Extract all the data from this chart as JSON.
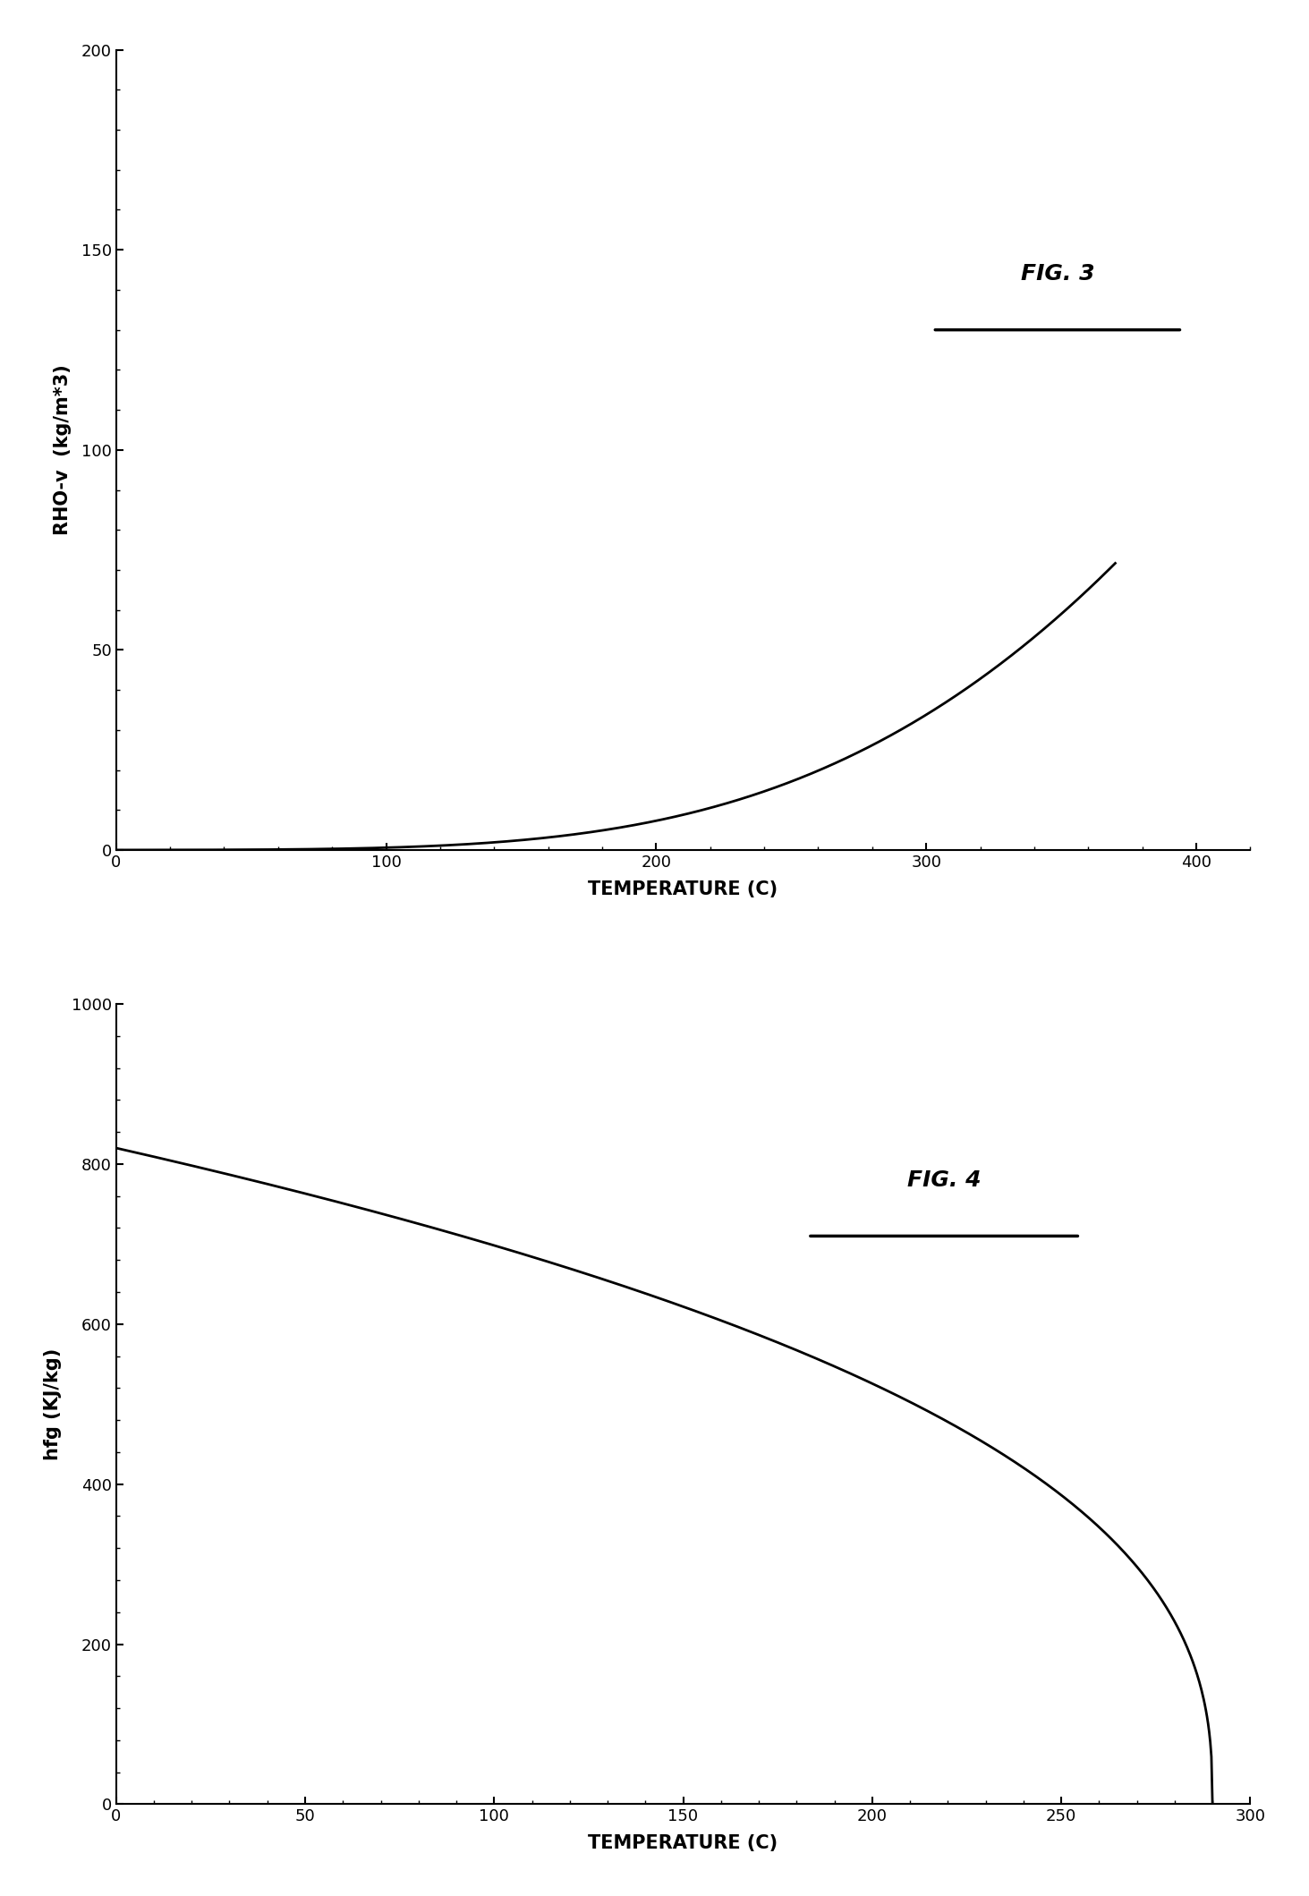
{
  "fig3": {
    "title": "FIG. 3",
    "xlabel": "TEMPERATURE (C)",
    "ylabel": "RHO-v  (kg/m*3)",
    "xlim": [
      0,
      420
    ],
    "ylim": [
      0,
      200
    ],
    "xticks": [
      0,
      100,
      200,
      300,
      400
    ],
    "yticks": [
      0,
      50,
      100,
      150,
      200
    ]
  },
  "fig4": {
    "title": "FIG. 4",
    "xlabel": "TEMPERATURE (C)",
    "ylabel": "hfg (KJ/kg)",
    "xlim": [
      0,
      300
    ],
    "ylim": [
      0,
      1000
    ],
    "xticks": [
      0,
      50,
      100,
      150,
      200,
      250,
      300
    ],
    "yticks": [
      0,
      200,
      400,
      600,
      800,
      1000
    ]
  },
  "line_color": "#000000",
  "line_width": 2.0,
  "background_color": "#ffffff",
  "font_size_label": 15,
  "font_size_tick": 13,
  "font_size_fig_label": 18
}
